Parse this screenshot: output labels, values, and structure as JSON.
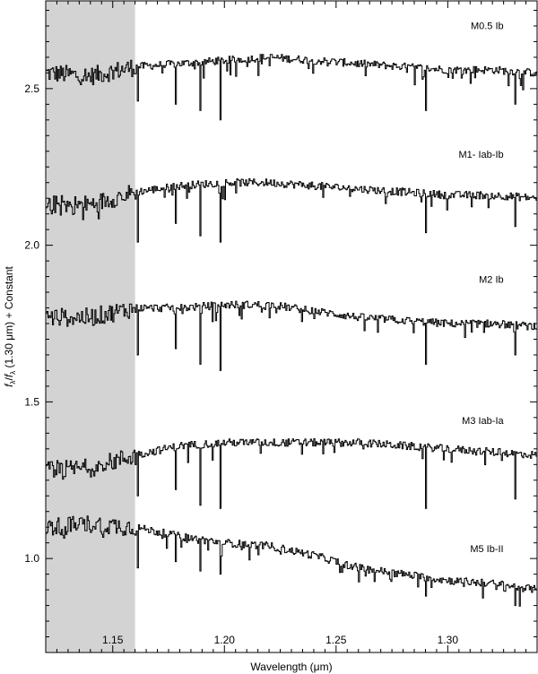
{
  "chart_data": {
    "type": "line",
    "xlabel": "Wavelength (μm)",
    "ylabel": {
      "f1": "f",
      "sub1": "λ",
      "slash": "/",
      "f2": "f",
      "sub2": "λ",
      "rest": " (1.30 μm) + Constant"
    },
    "xlim": [
      1.12,
      1.34
    ],
    "ylim": [
      0.7,
      2.78
    ],
    "xticks": [
      1.15,
      1.2,
      1.25,
      1.3
    ],
    "xtick_labels": [
      "1.15",
      "1.20",
      "1.25",
      "1.30"
    ],
    "yticks": [
      1.0,
      1.5,
      2.0,
      2.5
    ],
    "ytick_labels": [
      "1.0",
      "1.5",
      "2.0",
      "2.5"
    ],
    "shaded_region": {
      "x": [
        1.12,
        1.16
      ],
      "color": "#d3d3d3"
    },
    "grid": false,
    "series": [
      {
        "name": "M0.5 Ib",
        "offset": 2.5,
        "label_pos": [
          1.325,
          2.69
        ],
        "x": [
          1.12,
          1.14,
          1.16,
          1.18,
          1.2,
          1.22,
          1.24,
          1.26,
          1.28,
          1.3,
          1.32,
          1.34
        ],
        "values": [
          2.55,
          2.54,
          2.57,
          2.58,
          2.59,
          2.6,
          2.59,
          2.58,
          2.57,
          2.56,
          2.56,
          2.55
        ],
        "dips": [
          [
            1.161,
            2.46
          ],
          [
            1.178,
            2.45
          ],
          [
            1.189,
            2.43
          ],
          [
            1.198,
            2.4
          ],
          [
            1.29,
            2.43
          ],
          [
            1.33,
            2.45
          ]
        ]
      },
      {
        "name": "M1- Iab-Ib",
        "offset": 2.1,
        "label_pos": [
          1.325,
          2.28
        ],
        "x": [
          1.12,
          1.14,
          1.16,
          1.18,
          1.2,
          1.22,
          1.24,
          1.26,
          1.28,
          1.3,
          1.32,
          1.34
        ],
        "values": [
          2.13,
          2.13,
          2.17,
          2.19,
          2.2,
          2.2,
          2.19,
          2.18,
          2.17,
          2.16,
          2.16,
          2.15
        ],
        "dips": [
          [
            1.161,
            2.01
          ],
          [
            1.178,
            2.07
          ],
          [
            1.189,
            2.03
          ],
          [
            1.198,
            2.01
          ],
          [
            1.29,
            2.04
          ],
          [
            1.33,
            2.06
          ]
        ]
      },
      {
        "name": "M2 Ib",
        "offset": 1.8,
        "label_pos": [
          1.325,
          1.88
        ],
        "x": [
          1.12,
          1.14,
          1.16,
          1.18,
          1.2,
          1.22,
          1.24,
          1.26,
          1.28,
          1.3,
          1.32,
          1.34
        ],
        "values": [
          1.77,
          1.77,
          1.8,
          1.8,
          1.81,
          1.81,
          1.79,
          1.77,
          1.76,
          1.75,
          1.75,
          1.74
        ],
        "dips": [
          [
            1.161,
            1.65
          ],
          [
            1.178,
            1.67
          ],
          [
            1.189,
            1.62
          ],
          [
            1.198,
            1.6
          ],
          [
            1.29,
            1.62
          ],
          [
            1.33,
            1.65
          ]
        ]
      },
      {
        "name": "M3 Iab-Ia",
        "offset": 1.35,
        "label_pos": [
          1.325,
          1.43
        ],
        "x": [
          1.12,
          1.14,
          1.16,
          1.18,
          1.2,
          1.22,
          1.24,
          1.26,
          1.28,
          1.3,
          1.32,
          1.34
        ],
        "values": [
          1.28,
          1.29,
          1.33,
          1.36,
          1.37,
          1.37,
          1.37,
          1.37,
          1.36,
          1.35,
          1.34,
          1.33
        ],
        "dips": [
          [
            1.161,
            1.2
          ],
          [
            1.178,
            1.22
          ],
          [
            1.189,
            1.17
          ],
          [
            1.198,
            1.16
          ],
          [
            1.29,
            1.16
          ],
          [
            1.33,
            1.19
          ]
        ]
      },
      {
        "name": "M5 Ib-II",
        "offset": 1.0,
        "label_pos": [
          1.325,
          1.02
        ],
        "x": [
          1.12,
          1.14,
          1.16,
          1.18,
          1.2,
          1.22,
          1.24,
          1.26,
          1.28,
          1.3,
          1.32,
          1.34
        ],
        "values": [
          1.1,
          1.11,
          1.1,
          1.07,
          1.05,
          1.04,
          1.01,
          0.97,
          0.95,
          0.93,
          0.92,
          0.9
        ],
        "dips": [
          [
            1.161,
            0.97
          ],
          [
            1.178,
            0.99
          ],
          [
            1.189,
            0.96
          ],
          [
            1.198,
            0.95
          ],
          [
            1.29,
            0.88
          ],
          [
            1.33,
            0.85
          ]
        ]
      }
    ]
  }
}
